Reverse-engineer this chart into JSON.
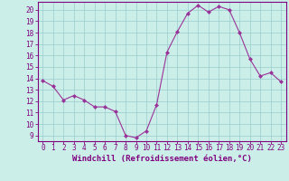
{
  "x": [
    0,
    1,
    2,
    3,
    4,
    5,
    6,
    7,
    8,
    9,
    10,
    11,
    12,
    13,
    14,
    15,
    16,
    17,
    18,
    19,
    20,
    21,
    22,
    23
  ],
  "y": [
    13.8,
    13.3,
    12.1,
    12.5,
    12.1,
    11.5,
    11.5,
    11.1,
    9.0,
    8.8,
    9.4,
    11.7,
    16.3,
    18.1,
    19.7,
    20.4,
    19.8,
    20.3,
    20.0,
    18.0,
    15.7,
    14.2,
    14.5,
    13.7
  ],
  "line_color": "#993399",
  "marker": "D",
  "marker_size": 2,
  "bg_color": "#cceee8",
  "grid_color": "#99cccc",
  "xlabel": "Windchill (Refroidissement éolien,°C)",
  "ylabel": "",
  "title": "",
  "xlim": [
    -0.5,
    23.5
  ],
  "ylim": [
    8.5,
    20.7
  ],
  "yticks": [
    9,
    10,
    11,
    12,
    13,
    14,
    15,
    16,
    17,
    18,
    19,
    20
  ],
  "xticks": [
    0,
    1,
    2,
    3,
    4,
    5,
    6,
    7,
    8,
    9,
    10,
    11,
    12,
    13,
    14,
    15,
    16,
    17,
    18,
    19,
    20,
    21,
    22,
    23
  ],
  "xlabel_fontsize": 6.5,
  "tick_fontsize": 5.5,
  "axis_color": "#800080",
  "tick_color": "#800080",
  "spine_color": "#800080"
}
